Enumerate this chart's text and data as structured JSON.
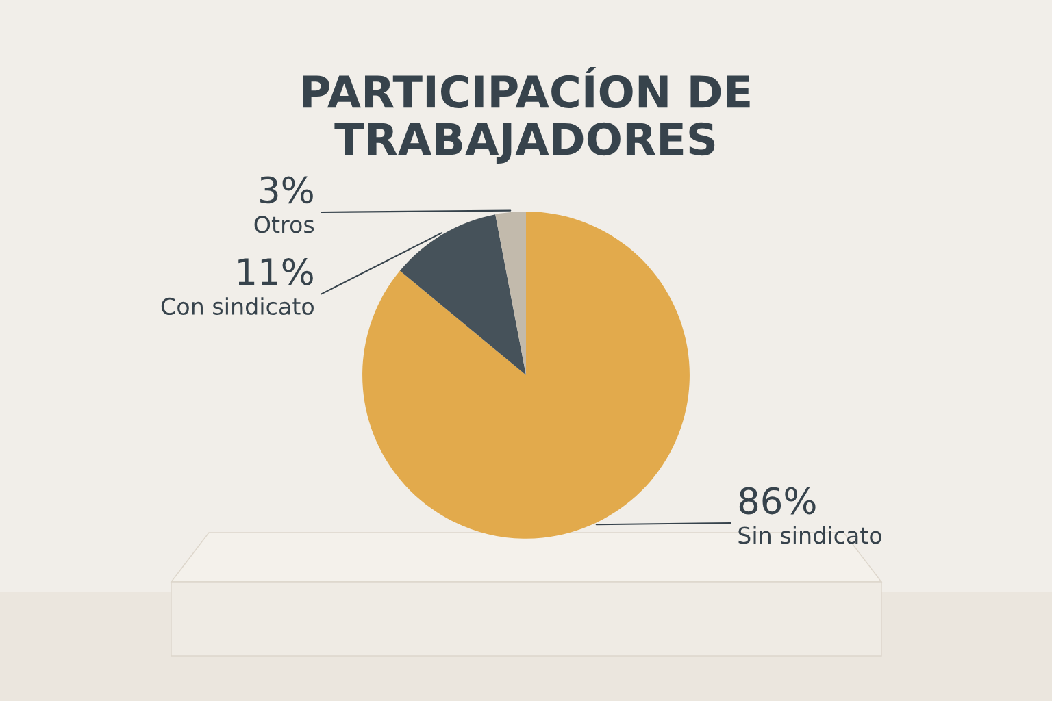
{
  "chart_data": {
    "type": "pie",
    "title": "PARTICIPACÍON DE\nTRABAJADORES",
    "categories": [
      "Sin sindicato",
      "Con sindicato",
      "Otros"
    ],
    "values": [
      86,
      11,
      3
    ],
    "value_labels": [
      "86%",
      "11%",
      "3%"
    ],
    "colors": [
      "#e2aa4c",
      "#46525a",
      "#c2baac"
    ]
  }
}
